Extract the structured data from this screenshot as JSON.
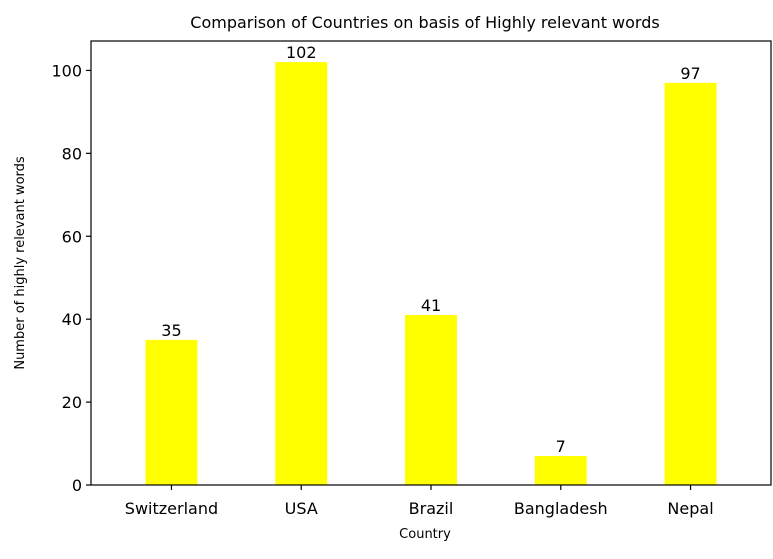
{
  "chart_data": {
    "type": "bar",
    "title": "Comparison of Countries on basis of Highly relevant words",
    "xlabel": "Country",
    "ylabel": "Number of highly relevant words",
    "categories": [
      "Switzerland",
      "USA",
      "Brazil",
      "Bangladesh",
      "Nepal"
    ],
    "values": [
      35,
      102,
      41,
      7,
      97
    ],
    "data_labels": [
      "35",
      "102",
      "41",
      "7",
      "97"
    ],
    "ylim": [
      0,
      107.1
    ],
    "yticks": [
      0,
      20,
      40,
      60,
      80,
      100
    ],
    "bar_color": "#ffff00",
    "grid": false,
    "legend": "none"
  }
}
